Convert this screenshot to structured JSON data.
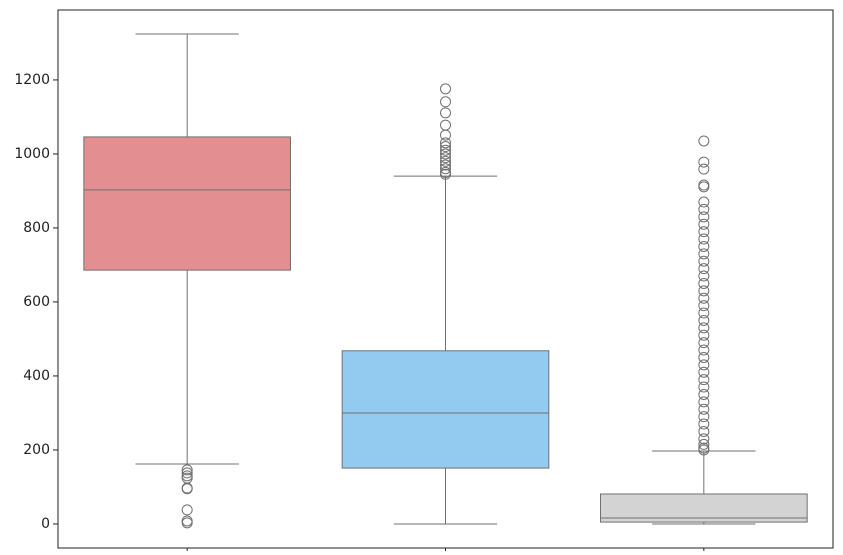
{
  "chart_data": {
    "type": "box",
    "categories": [
      null,
      null,
      null
    ],
    "boxes": [
      {
        "color": "#e38e90",
        "whislo": 162,
        "q1": 686,
        "med": 903,
        "q3": 1046,
        "whishi": 1324,
        "fliers": [
          146,
          138,
          130,
          124,
          97,
          95,
          38,
          8,
          3
        ]
      },
      {
        "color": "#92cbef",
        "whislo": 0,
        "q1": 151,
        "med": 300,
        "q3": 468,
        "whishi": 940,
        "fliers": [
          1176,
          1141,
          1111,
          1078,
          1051,
          1030,
          1020,
          1010,
          1000,
          990,
          980,
          970,
          960,
          950,
          945
        ]
      },
      {
        "color": "#d3d3d3",
        "whislo": 0,
        "q1": 5,
        "med": 16,
        "q3": 81,
        "whishi": 197,
        "fliers": [
          1035,
          978,
          959,
          916,
          911,
          870,
          850,
          830,
          810,
          790,
          770,
          750,
          730,
          710,
          690,
          670,
          650,
          630,
          610,
          590,
          570,
          550,
          530,
          510,
          490,
          470,
          450,
          430,
          410,
          390,
          370,
          350,
          330,
          310,
          290,
          270,
          250,
          230,
          215,
          205,
          200
        ]
      }
    ],
    "ylim": [
      -65,
      1389
    ],
    "yticks": [
      0,
      200,
      400,
      600,
      800,
      1000,
      1200
    ]
  }
}
